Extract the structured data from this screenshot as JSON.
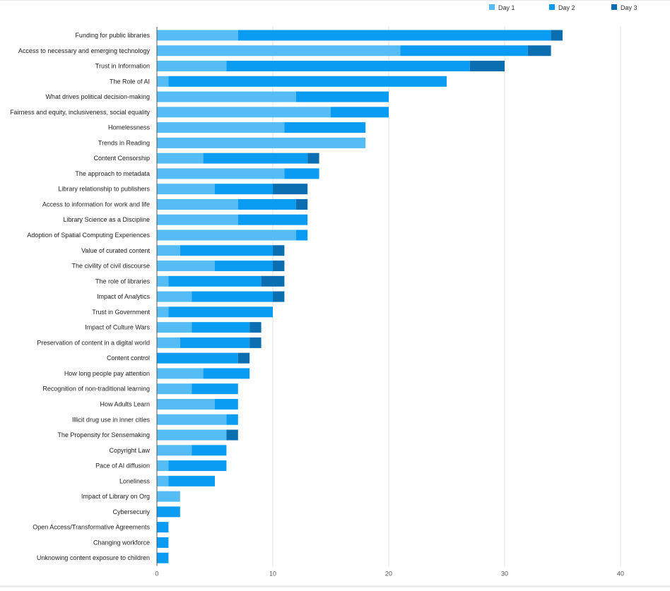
{
  "chart_data": {
    "type": "bar",
    "orientation": "horizontal",
    "stacked": true,
    "categories": [
      "Funding for public libraries",
      "Access to necessary and emerging technology",
      "Trust in Information",
      "The Role of AI",
      "What drives political decision-making",
      "Fairness and equity, inclusiveness, social equality",
      "Homelessness",
      "Trends in Reading",
      "Content Censorship",
      "The approach to metadata",
      "Library relationship to publishers",
      "Access to information for work and life",
      "Library Science as a Discipline",
      "Adoption of Spatial Computing Experiences",
      "Value of curated content",
      "The civility of civil discourse",
      "The role of libraries",
      "Impact of Analytics",
      "Trust in Government",
      "Impact of Culture Wars",
      "Preservation of content in a digital world",
      "Content control",
      "How long people pay attention",
      "Recognition of non-traditional learning",
      "How Adults Learn",
      "Illicit drug use in inner cities",
      "The Propensity for Sensemaking",
      "Copyright Law",
      "Pace of AI diffusion",
      "Loneliness",
      "Impact of Library on Org",
      "Cybersecuriy",
      "Open Access/Transformative Agreements",
      "Changing workforce",
      "Unknowing content exposure to children"
    ],
    "series": [
      {
        "name": "Day 1",
        "color": "#55bcf5",
        "values": [
          7,
          21,
          6,
          1,
          12,
          15,
          11,
          18,
          4,
          11,
          5,
          7,
          7,
          12,
          2,
          5,
          1,
          3,
          1,
          3,
          2,
          0,
          4,
          3,
          5,
          6,
          6,
          3,
          1,
          1,
          2,
          0,
          0,
          0,
          0
        ]
      },
      {
        "name": "Day 2",
        "color": "#0a9cf2",
        "values": [
          27,
          11,
          21,
          24,
          8,
          5,
          7,
          0,
          9,
          3,
          5,
          5,
          6,
          1,
          8,
          5,
          8,
          7,
          9,
          5,
          6,
          7,
          4,
          4,
          2,
          1,
          0,
          3,
          5,
          4,
          0,
          2,
          1,
          1,
          1
        ]
      },
      {
        "name": "Day 3",
        "color": "#0a6eb0",
        "values": [
          1,
          2,
          3,
          0,
          0,
          0,
          0,
          0,
          1,
          0,
          3,
          1,
          0,
          0,
          1,
          1,
          2,
          1,
          0,
          1,
          1,
          1,
          0,
          0,
          0,
          0,
          1,
          0,
          0,
          0,
          0,
          0,
          0,
          0,
          0
        ]
      }
    ],
    "xlim": [
      0,
      40
    ],
    "xticks": [
      "0",
      "10",
      "20",
      "30",
      "40"
    ],
    "grid": true,
    "legend_position": "top-right"
  }
}
